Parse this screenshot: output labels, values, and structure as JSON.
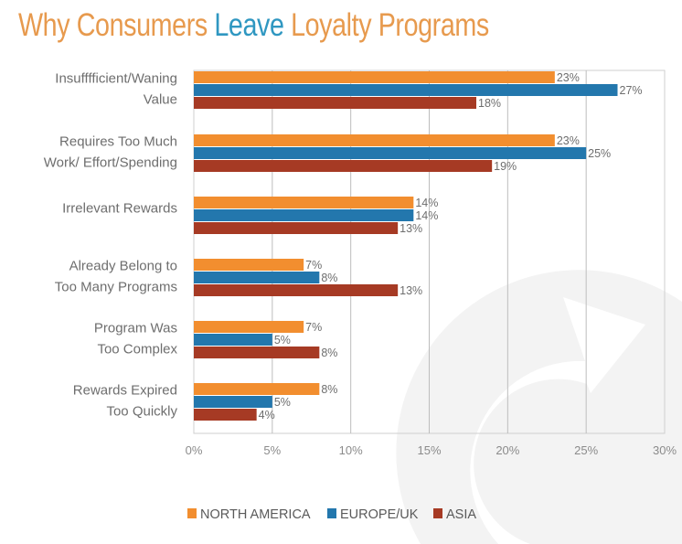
{
  "title": {
    "prefix": "Why Consumers ",
    "highlight": "Leave",
    "suffix": " Loyalty Programs",
    "color": "#e79a4e",
    "highlight_color": "#2f97c1"
  },
  "chart_data": {
    "type": "bar",
    "orientation": "horizontal",
    "title": "Why Consumers Leave Loyalty Programs",
    "xlabel": "",
    "ylabel": "",
    "xlim": [
      0,
      30
    ],
    "x_ticks": [
      0,
      5,
      10,
      15,
      20,
      25,
      30
    ],
    "x_tick_labels": [
      "0%",
      "5%",
      "10%",
      "15%",
      "20%",
      "25%",
      "30%"
    ],
    "grid": true,
    "legend_position": "bottom",
    "categories": [
      [
        "Insufffficient/Waning",
        "Value"
      ],
      [
        "Requires Too Much",
        "Work/ Effort/Spending"
      ],
      [
        "Irrelevant Rewards"
      ],
      [
        "Already Belong to",
        "Too Many Programs"
      ],
      [
        "Program Was",
        "Too Complex"
      ],
      [
        "Rewards Expired",
        "Too Quickly"
      ]
    ],
    "series": [
      {
        "name": "NORTH AMERICA",
        "color": "#f28e2f",
        "values": [
          23,
          23,
          14,
          7,
          7,
          8
        ],
        "labels": [
          "23%",
          "23%",
          "14%",
          "7%",
          "7%",
          "8%"
        ]
      },
      {
        "name": "EUROPE/UK",
        "color": "#2377ad",
        "values": [
          27,
          25,
          14,
          8,
          5,
          5
        ],
        "labels": [
          "27%",
          "25%",
          "14%",
          "8%",
          "5%",
          "5%"
        ]
      },
      {
        "name": "ASIA",
        "color": "#a63a24",
        "values": [
          18,
          19,
          13,
          13,
          8,
          4
        ],
        "labels": [
          "18%",
          "19%",
          "13%",
          "13%",
          "8%",
          "4%"
        ]
      }
    ]
  }
}
